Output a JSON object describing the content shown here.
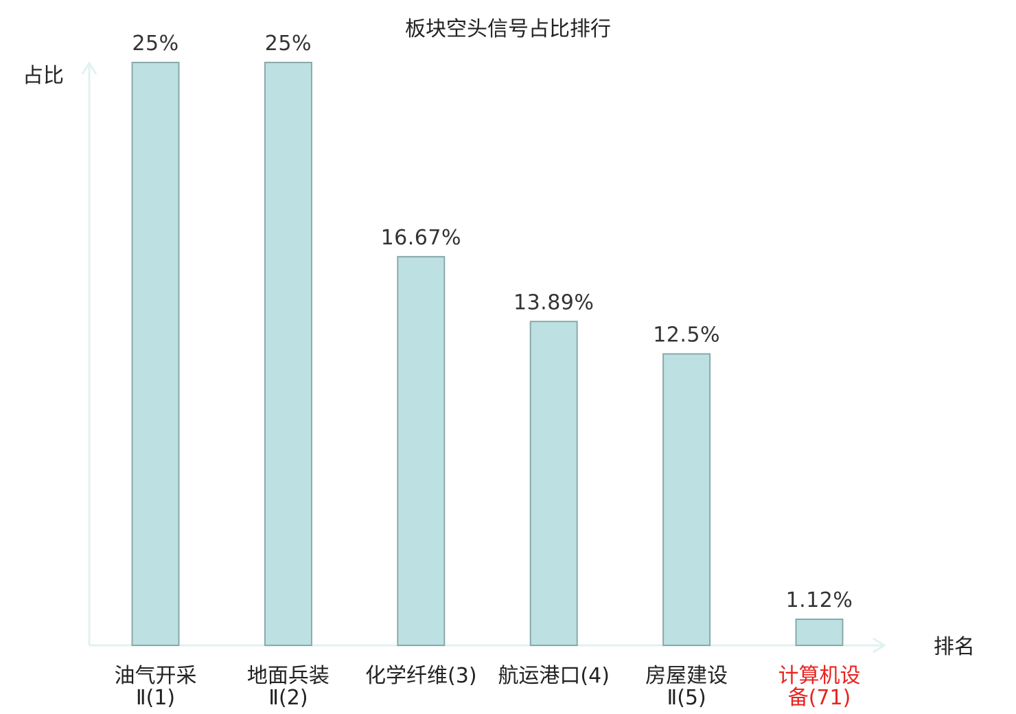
{
  "chart_data": {
    "type": "bar",
    "title": "板块空头信号占比排行",
    "ylabel": "占比",
    "xlabel": "排名",
    "categories": [
      [
        "油气开采",
        "Ⅱ(1)"
      ],
      [
        "地面兵装",
        "Ⅱ(2)"
      ],
      [
        "化学纤维(3)"
      ],
      [
        "航运港口(4)"
      ],
      [
        "房屋建设",
        "Ⅱ(5)"
      ],
      [
        "计算机设",
        "备(71)"
      ]
    ],
    "values": [
      25,
      25,
      16.67,
      13.89,
      12.5,
      1.12
    ],
    "value_labels": [
      "25%",
      "25%",
      "16.67%",
      "13.89%",
      "12.5%",
      "1.12%"
    ],
    "highlight_index": 5,
    "ylim": [
      0,
      25
    ],
    "grid": false,
    "colors": {
      "bar_fill": "#bde0e2",
      "bar_stroke": "#88a9ab",
      "axis": "#e0f2ef",
      "highlight_text": "#e8231f"
    }
  }
}
